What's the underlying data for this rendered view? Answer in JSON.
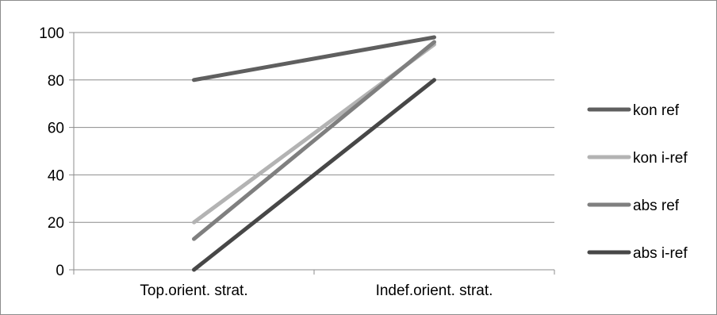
{
  "chart_data": {
    "type": "line",
    "title": "",
    "xlabel": "",
    "ylabel": "",
    "categories": [
      "Top.orient. strat.",
      "Indef.orient. strat."
    ],
    "ylim": [
      0,
      100
    ],
    "yticks": [
      0,
      20,
      40,
      60,
      80,
      100
    ],
    "grid": true,
    "legend_position": "right",
    "series": [
      {
        "name": "kon ref",
        "values": [
          80,
          98
        ],
        "color": "#5f5f5f"
      },
      {
        "name": "kon i-ref",
        "values": [
          20,
          95
        ],
        "color": "#b3b3b3"
      },
      {
        "name": "abs ref",
        "values": [
          13,
          96
        ],
        "color": "#7f7f7f"
      },
      {
        "name": "abs i-ref",
        "values": [
          0,
          80
        ],
        "color": "#474747"
      }
    ]
  }
}
